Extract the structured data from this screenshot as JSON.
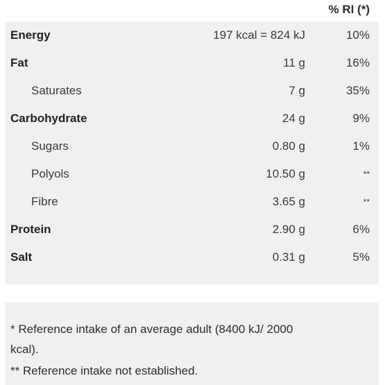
{
  "header": {
    "ri_label": "% RI (*)"
  },
  "rows": [
    {
      "name": "Energy",
      "amount": "197 kcal = 824 kJ",
      "ri": "10%",
      "bold": true
    },
    {
      "name": "Fat",
      "amount": "11 g",
      "ri": "16%",
      "bold": true
    },
    {
      "name": "Saturates",
      "amount": "7 g",
      "ri": "35%",
      "bold": false
    },
    {
      "name": "Carbohydrate",
      "amount": "24 g",
      "ri": "9%",
      "bold": true
    },
    {
      "name": "Sugars",
      "amount": "0.80 g",
      "ri": "1%",
      "bold": false
    },
    {
      "name": "Polyols",
      "amount": "10.50 g",
      "ri": "**",
      "bold": false
    },
    {
      "name": "Fibre",
      "amount": "3.65 g",
      "ri": "**",
      "bold": false
    },
    {
      "name": "Protein",
      "amount": "2.90 g",
      "ri": "6%",
      "bold": true
    },
    {
      "name": "Salt",
      "amount": "0.31 g",
      "ri": "5%",
      "bold": true
    }
  ],
  "footnotes": {
    "line1": "* Reference intake of an average adult (8400 kJ/ 2000",
    "line2": "kcal).",
    "line3": "** Reference intake not established."
  }
}
